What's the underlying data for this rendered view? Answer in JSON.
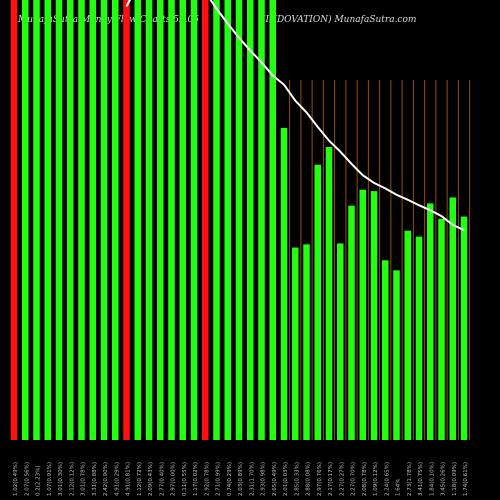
{
  "header": {
    "left_text": "MunafaSutra Money Flow Charts 52.05",
    "right_text": "(INDOVATION) MunafaSutra.com"
  },
  "colors": {
    "up": "#22ff11",
    "down": "#ff1111",
    "grid": "#9a4d08",
    "avg_line": "#ffffff",
    "background": "#000000",
    "label": "#c0c0c0"
  },
  "chart_data": {
    "type": "bar",
    "title": "MunafaSutra Money Flow Charts 52.05 (INDOVATION) MunafaSutra.com",
    "ylim": [
      0,
      100
    ],
    "grid": "vertical lines in second half",
    "categories": [
      "1.02(0.49%)",
      "2.07(0.56%)",
      "0.2(2.23%)",
      "1.07(0.91%)",
      "3.01(0.30%)",
      "2.12(0.12%)",
      "3.01(0.78%)",
      "3.31(0.88%)",
      "2.42(0.90%)",
      "4.91(0.29%)",
      "4.91(0.81%)",
      "1.12(0.72%)",
      "2.09(0.43%)",
      "2.77(0.40%)",
      "2.97(0.00%)",
      "0.11(0.55%)",
      "1.17(0.02%)",
      "2.92(0.78%)",
      "2.71(0.99%)",
      "0.74(0.29%)",
      "2.03(0.89%)",
      "2.31(1.70%)",
      "2.93(0.98%)",
      "2.65(0.49%)",
      "2.01(0.03%)",
      "2.85(0.33%)",
      "2.88(0.08%)",
      "2.97(0.76%)",
      "2.17(0.17%)",
      "2.27(0.27%)",
      "2.27(0.70%)",
      "2.08(0.78%)",
      "1.09(0.12%)",
      "2.24(0.65%)",
      "1.64%",
      "2.73(1.78%)",
      "3.41(0.75%)",
      "1.84(0.10%)",
      "3.45(0.26%)",
      "1.18(0.09%)",
      "1.74(0.61%)"
    ],
    "series": [
      {
        "values": [
          100,
          100,
          100,
          100,
          100,
          100,
          100,
          100,
          100,
          100,
          100,
          100,
          100,
          100,
          100,
          100,
          100,
          100,
          100,
          100,
          100,
          100,
          100,
          100,
          68.6,
          42.3,
          43.0,
          60.5,
          64.4,
          43.2,
          51.5,
          55.0,
          54.7,
          39.5,
          37.3,
          46.0,
          44.7,
          52.0,
          48.6,
          53.3,
          49.1
        ],
        "directions": [
          "down",
          "up",
          "up",
          "up",
          "up",
          "up",
          "up",
          "up",
          "up",
          "up",
          "down",
          "up",
          "up",
          "up",
          "up",
          "up",
          "up",
          "down",
          "up",
          "up",
          "up",
          "up",
          "up",
          "up",
          "up",
          "up",
          "up",
          "up",
          "up",
          "up",
          "up",
          "up",
          "up",
          "up",
          "up",
          "up",
          "up",
          "up",
          "up",
          "up",
          "up"
        ]
      },
      {
        "name": "average",
        "values": [
          null,
          null,
          null,
          null,
          null,
          null,
          null,
          null,
          null,
          null,
          95.3,
          100,
          100,
          100,
          100,
          100,
          100,
          98.5,
          94.8,
          91.5,
          88.4,
          85.6,
          83.0,
          80.1,
          78.1,
          74.6,
          72.0,
          68.8,
          65.8,
          63.4,
          60.7,
          58.2,
          56.5,
          55.3,
          53.9,
          52.8,
          51.6,
          50.5,
          49.2,
          47.3,
          46.1
        ]
      }
    ]
  }
}
